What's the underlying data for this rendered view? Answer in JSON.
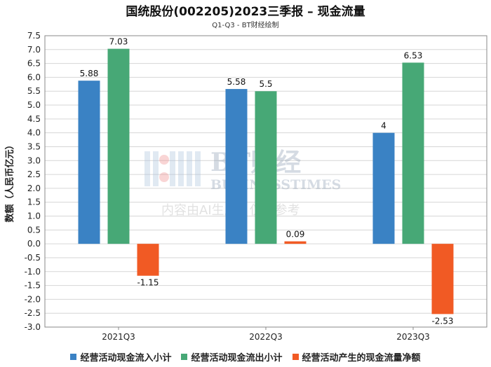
{
  "header": {
    "title": "国统股份(002205)2023三季报 – 现金流量",
    "subtitle": "Q1-Q3 - BT财经绘制"
  },
  "watermark": {
    "brand": "BT财经",
    "brand_en": "BUSINESSTIMES",
    "note": "内容由AI生成，仅供参考"
  },
  "chart_data": {
    "type": "bar",
    "categories": [
      "2021Q3",
      "2022Q3",
      "2023Q3"
    ],
    "series": [
      {
        "name": "经营活动现金流入小计",
        "color": "#3a82c4",
        "values": [
          5.88,
          5.58,
          4
        ]
      },
      {
        "name": "经营活动现金流出小计",
        "color": "#47a876",
        "values": [
          7.03,
          5.5,
          6.53
        ]
      },
      {
        "name": "经营活动产生的现金流量净额",
        "color": "#f15a24",
        "values": [
          -1.15,
          0.09,
          -2.53
        ]
      }
    ],
    "value_labels": [
      [
        "5.88",
        "5.58",
        "4"
      ],
      [
        "7.03",
        "5.5",
        "6.53"
      ],
      [
        "-1.15",
        "0.09",
        "-2.53"
      ]
    ],
    "ylabel": "数额（人民币亿元）",
    "xlabel": "",
    "ylim": [
      -3.0,
      7.5
    ],
    "ytick_step": 0.5,
    "grid": true,
    "legend_position": "bottom"
  }
}
